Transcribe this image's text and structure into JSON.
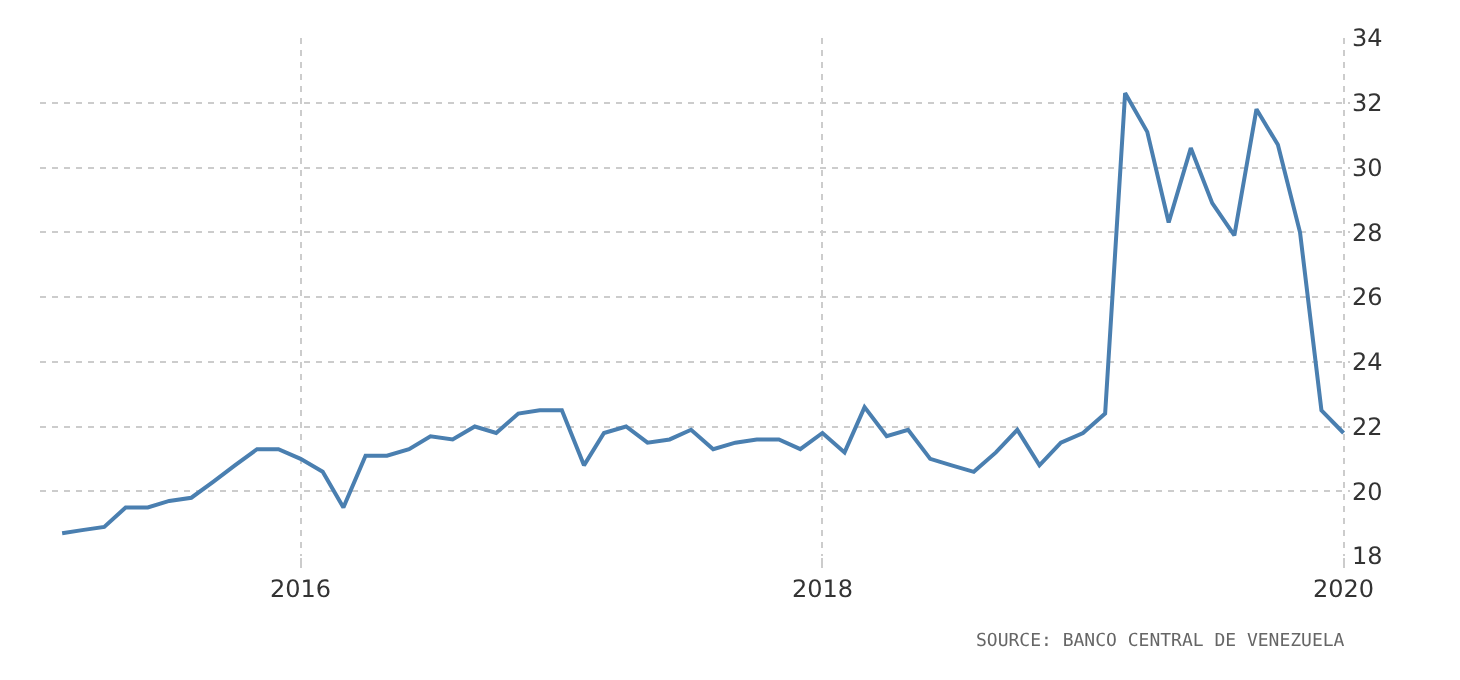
{
  "chart_data": {
    "type": "line",
    "x": [
      "2015-02",
      "2015-03",
      "2015-04",
      "2015-05",
      "2015-06",
      "2015-07",
      "2015-08",
      "2015-09",
      "2015-10",
      "2015-11",
      "2015-12",
      "2016-01",
      "2016-02",
      "2016-03",
      "2016-04",
      "2016-05",
      "2016-06",
      "2016-07",
      "2016-08",
      "2016-09",
      "2016-10",
      "2016-11",
      "2016-12",
      "2017-01",
      "2017-02",
      "2017-03",
      "2017-04",
      "2017-05",
      "2017-06",
      "2017-07",
      "2017-08",
      "2017-09",
      "2017-10",
      "2017-11",
      "2017-12",
      "2018-01",
      "2018-02",
      "2018-03",
      "2018-04",
      "2018-05",
      "2018-06",
      "2018-07",
      "2018-08",
      "2018-09",
      "2018-10",
      "2018-11",
      "2018-12",
      "2019-01",
      "2019-02",
      "2019-03",
      "2019-04",
      "2019-05",
      "2019-06",
      "2019-07",
      "2019-08",
      "2019-09",
      "2019-10",
      "2019-11",
      "2019-12",
      "2020-01"
    ],
    "series": [
      {
        "color": "#4a7fb0",
        "values": [
          18.7,
          18.8,
          18.9,
          19.5,
          19.5,
          19.7,
          19.8,
          20.3,
          20.8,
          21.3,
          21.3,
          21.0,
          20.6,
          19.5,
          21.1,
          21.1,
          21.3,
          21.7,
          21.6,
          22.0,
          21.8,
          22.4,
          22.5,
          22.5,
          20.8,
          21.8,
          22.0,
          21.5,
          21.6,
          21.9,
          21.3,
          21.5,
          21.6,
          21.6,
          21.3,
          21.8,
          21.2,
          22.6,
          21.7,
          21.9,
          21.0,
          20.8,
          20.6,
          21.2,
          21.9,
          20.8,
          21.5,
          21.8,
          22.4,
          32.3,
          31.1,
          28.3,
          30.6,
          28.9,
          27.9,
          31.8,
          30.7,
          28.0,
          22.5,
          21.8
        ]
      }
    ],
    "xlim": [
      "2015-01-01",
      "2020-01-10"
    ],
    "xticks": [
      {
        "value": "2016-01-01",
        "label": "2016"
      },
      {
        "value": "2018-01-01",
        "label": "2018"
      },
      {
        "value": "2020-01-01",
        "label": "2020"
      }
    ],
    "ylim": [
      18,
      34
    ],
    "yticks": [
      18,
      20,
      22,
      24,
      26,
      28,
      30,
      32,
      34
    ],
    "grid": true,
    "marker": "none",
    "line_style": "solid",
    "annotations": [
      "SOURCE: BANCO CENTRAL DE VENEZUELA"
    ]
  }
}
